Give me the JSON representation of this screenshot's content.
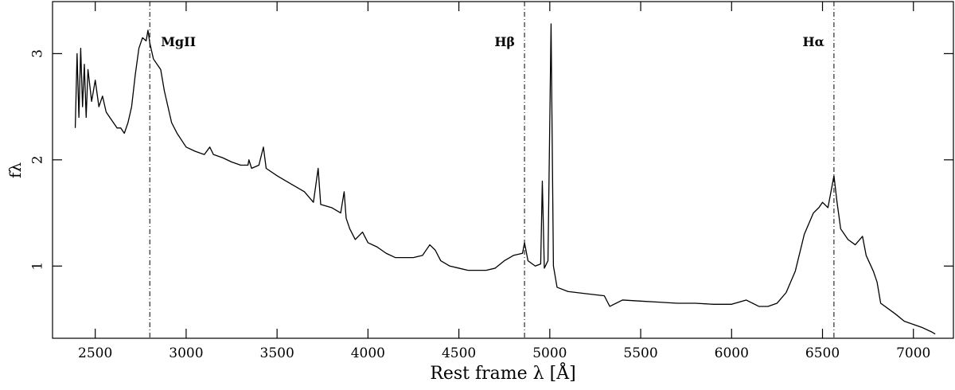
{
  "chart_data": {
    "type": "line",
    "xlabel": "Rest frame λ [Å]",
    "ylabel": "fλ",
    "xlim": [
      2265,
      7220
    ],
    "ylim": [
      0.32,
      3.49
    ],
    "xticks": [
      2500,
      3000,
      3500,
      4000,
      4500,
      5000,
      5500,
      6000,
      6500,
      7000
    ],
    "yticks": [
      1,
      2,
      3
    ],
    "annotations": [
      {
        "x": 2800,
        "label": "MgII"
      },
      {
        "x": 4861,
        "label": "Hβ"
      },
      {
        "x": 6563,
        "label": "Hα"
      }
    ],
    "series": [
      {
        "color": "#000000",
        "x": [
          2390,
          2400,
          2410,
          2420,
          2430,
          2440,
          2450,
          2460,
          2480,
          2500,
          2520,
          2540,
          2560,
          2580,
          2600,
          2620,
          2640,
          2660,
          2680,
          2700,
          2720,
          2740,
          2760,
          2780,
          2790,
          2800,
          2820,
          2840,
          2860,
          2880,
          2900,
          2920,
          2950,
          3000,
          3050,
          3100,
          3130,
          3150,
          3200,
          3250,
          3300,
          3340,
          3345,
          3360,
          3400,
          3425,
          3440,
          3500,
          3550,
          3600,
          3650,
          3700,
          3726,
          3740,
          3800,
          3850,
          3869,
          3880,
          3900,
          3930,
          3970,
          4000,
          4050,
          4100,
          4150,
          4200,
          4250,
          4300,
          4340,
          4370,
          4400,
          4450,
          4500,
          4550,
          4600,
          4650,
          4700,
          4750,
          4800,
          4850,
          4861,
          4880,
          4920,
          4950,
          4959,
          4970,
          4990,
          5007,
          5020,
          5040,
          5100,
          5200,
          5300,
          5330,
          5400,
          5500,
          5600,
          5700,
          5800,
          5900,
          6000,
          6080,
          6150,
          6200,
          6250,
          6300,
          6350,
          6400,
          6450,
          6480,
          6500,
          6530,
          6563,
          6580,
          6600,
          6640,
          6680,
          6720,
          6740,
          6780,
          6800,
          6820,
          6900,
          6950,
          7000,
          7050,
          7100,
          7120
        ],
        "values": [
          2.3,
          3.0,
          2.4,
          3.05,
          2.5,
          2.9,
          2.4,
          2.85,
          2.55,
          2.75,
          2.5,
          2.6,
          2.45,
          2.4,
          2.35,
          2.3,
          2.3,
          2.25,
          2.35,
          2.5,
          2.8,
          3.05,
          3.15,
          3.12,
          3.22,
          3.1,
          2.95,
          2.9,
          2.85,
          2.65,
          2.5,
          2.35,
          2.25,
          2.12,
          2.08,
          2.05,
          2.12,
          2.05,
          2.02,
          1.98,
          1.95,
          1.95,
          2.0,
          1.92,
          1.95,
          2.12,
          1.92,
          1.85,
          1.8,
          1.75,
          1.7,
          1.6,
          1.92,
          1.58,
          1.55,
          1.5,
          1.7,
          1.45,
          1.35,
          1.25,
          1.32,
          1.22,
          1.18,
          1.12,
          1.08,
          1.08,
          1.08,
          1.1,
          1.2,
          1.15,
          1.05,
          1.0,
          0.98,
          0.96,
          0.96,
          0.96,
          0.98,
          1.05,
          1.1,
          1.12,
          1.22,
          1.05,
          1.0,
          1.02,
          1.8,
          0.98,
          1.05,
          3.28,
          1.0,
          0.8,
          0.76,
          0.74,
          0.72,
          0.62,
          0.68,
          0.67,
          0.66,
          0.65,
          0.65,
          0.64,
          0.64,
          0.68,
          0.62,
          0.62,
          0.65,
          0.75,
          0.95,
          1.3,
          1.5,
          1.55,
          1.6,
          1.55,
          1.85,
          1.6,
          1.35,
          1.25,
          1.2,
          1.28,
          1.1,
          0.95,
          0.85,
          0.65,
          0.55,
          0.48,
          0.45,
          0.42,
          0.38,
          0.36
        ]
      }
    ]
  }
}
